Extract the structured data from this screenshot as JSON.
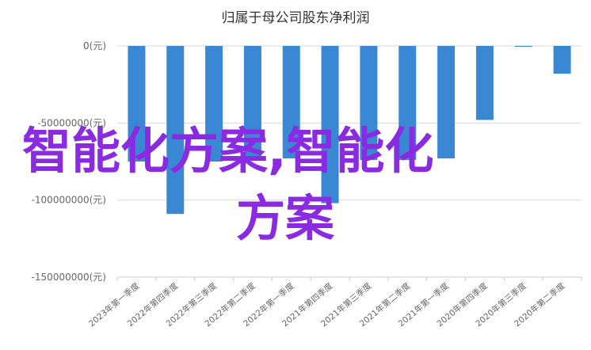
{
  "chart_data": {
    "type": "bar",
    "title": "归属于母公司股东净利润",
    "xlabel": "",
    "ylabel": "",
    "categories": [
      "2023年第一季度",
      "2022年第四季度",
      "2022年第三季度",
      "2022年第二季度",
      "2022年第一季度",
      "2021年第四季度",
      "2021年第三季度",
      "2021年第二季度",
      "2021年第一季度",
      "2020年第四季度",
      "2020年第三季度",
      "2020年第二季度"
    ],
    "values": [
      -75000000,
      -109000000,
      -75000000,
      -73000000,
      -73000000,
      -102000000,
      -74000000,
      -74000000,
      -73000000,
      -48000000,
      -500000,
      -18000000
    ],
    "yticks": [
      "0(元)",
      "-50000000(元)",
      "-100000000(元)",
      "-150000000(元)"
    ],
    "ylim": [
      -150000000,
      0
    ],
    "grid": true,
    "bar_color": "#3a87d4"
  },
  "watermark": {
    "line1": "智能化方案,智能化",
    "line2": "方案",
    "color": "#8a2be2"
  }
}
